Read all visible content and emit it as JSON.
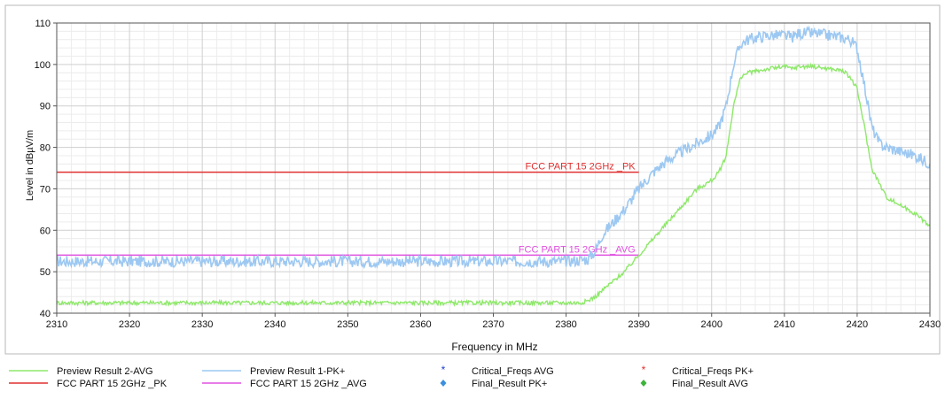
{
  "chart_data": {
    "type": "line",
    "title": "",
    "xlabel": "Frequency in MHz",
    "ylabel": "Level in dBµV/m",
    "xlim": [
      2310,
      2430
    ],
    "ylim": [
      40,
      110
    ],
    "x_ticks": [
      "2310",
      "2320",
      "2330",
      "2340",
      "2350",
      "2360",
      "2370",
      "2380",
      "2390",
      "2400",
      "2410",
      "2420",
      "2430"
    ],
    "y_ticks": [
      "40",
      "50",
      "60",
      "70",
      "80",
      "90",
      "100",
      "110"
    ],
    "grid": true,
    "legend_position": "bottom",
    "series": [
      {
        "name": "Preview Result 1-PK+",
        "color": "#9cc8f2",
        "x": [
          2310,
          2320,
          2330,
          2340,
          2350,
          2360,
          2370,
          2380,
          2383,
          2384,
          2385,
          2386,
          2388,
          2390,
          2392,
          2394,
          2396,
          2398,
          2400,
          2401,
          2402,
          2403,
          2404,
          2405,
          2406,
          2408,
          2410,
          2411,
          2412,
          2414,
          2416,
          2418,
          2419,
          2420,
          2421,
          2422,
          2423,
          2424,
          2426,
          2428,
          2430
        ],
        "values": [
          52.5,
          52.5,
          52.5,
          52.5,
          52.5,
          52.5,
          52.5,
          52.5,
          53,
          55,
          59,
          61,
          65,
          70,
          74,
          77,
          79,
          81,
          83,
          85,
          90,
          100,
          105,
          106,
          106.5,
          107,
          107,
          106.5,
          107.5,
          107.5,
          107,
          106.5,
          106,
          104,
          95,
          85,
          81,
          80,
          79,
          78,
          76
        ]
      },
      {
        "name": "Preview Result 2-AVG",
        "color": "#8ee86a",
        "x": [
          2310,
          2320,
          2330,
          2340,
          2350,
          2360,
          2370,
          2380,
          2382,
          2383,
          2384,
          2385,
          2386,
          2388,
          2390,
          2392,
          2394,
          2396,
          2398,
          2400,
          2401,
          2402,
          2403,
          2404,
          2405,
          2408,
          2410,
          2411,
          2412,
          2414,
          2416,
          2418,
          2419,
          2420,
          2421,
          2422,
          2424,
          2426,
          2428,
          2430
        ],
        "values": [
          42.5,
          42.5,
          42.5,
          42.5,
          42.5,
          42.5,
          42.5,
          42.5,
          42.5,
          43,
          44,
          45.5,
          47,
          50,
          54,
          58,
          62,
          66,
          70,
          72,
          74,
          78,
          90,
          97,
          98,
          99,
          99.5,
          99,
          99.5,
          99.5,
          99,
          98.5,
          97,
          94,
          85,
          75,
          68,
          66,
          64,
          61
        ]
      },
      {
        "name": "FCC PART 15 2GHz _PK",
        "color": "#e03030",
        "x": [
          2310,
          2390
        ],
        "values": [
          74,
          74
        ],
        "label": "FCC PART 15 2GHz _PK"
      },
      {
        "name": "FCC PART 15 2GHz _AVG",
        "color": "#e050e0",
        "x": [
          2310,
          2390
        ],
        "values": [
          54,
          54
        ],
        "label": "FCC PART 15 2GHz _AVG"
      }
    ],
    "legend": [
      {
        "label": "Preview Result 2-AVG",
        "color": "#8ee86a",
        "symbol": "line"
      },
      {
        "label": "Preview Result 1-PK+",
        "color": "#9cc8f2",
        "symbol": "line"
      },
      {
        "label": "Critical_Freqs AVG",
        "color": "#2040d0",
        "symbol": "asterisk"
      },
      {
        "label": "Critical_Freqs PK+",
        "color": "#e03030",
        "symbol": "asterisk"
      },
      {
        "label": "FCC PART 15 2GHz _PK",
        "color": "#e03030",
        "symbol": "line"
      },
      {
        "label": "FCC PART 15 2GHz _AVG",
        "color": "#e050e0",
        "symbol": "line"
      },
      {
        "label": "Final_Result PK+",
        "color": "#3b8fe0",
        "symbol": "diamond"
      },
      {
        "label": "Final_Result AVG",
        "color": "#3cb43c",
        "symbol": "diamond"
      }
    ]
  }
}
